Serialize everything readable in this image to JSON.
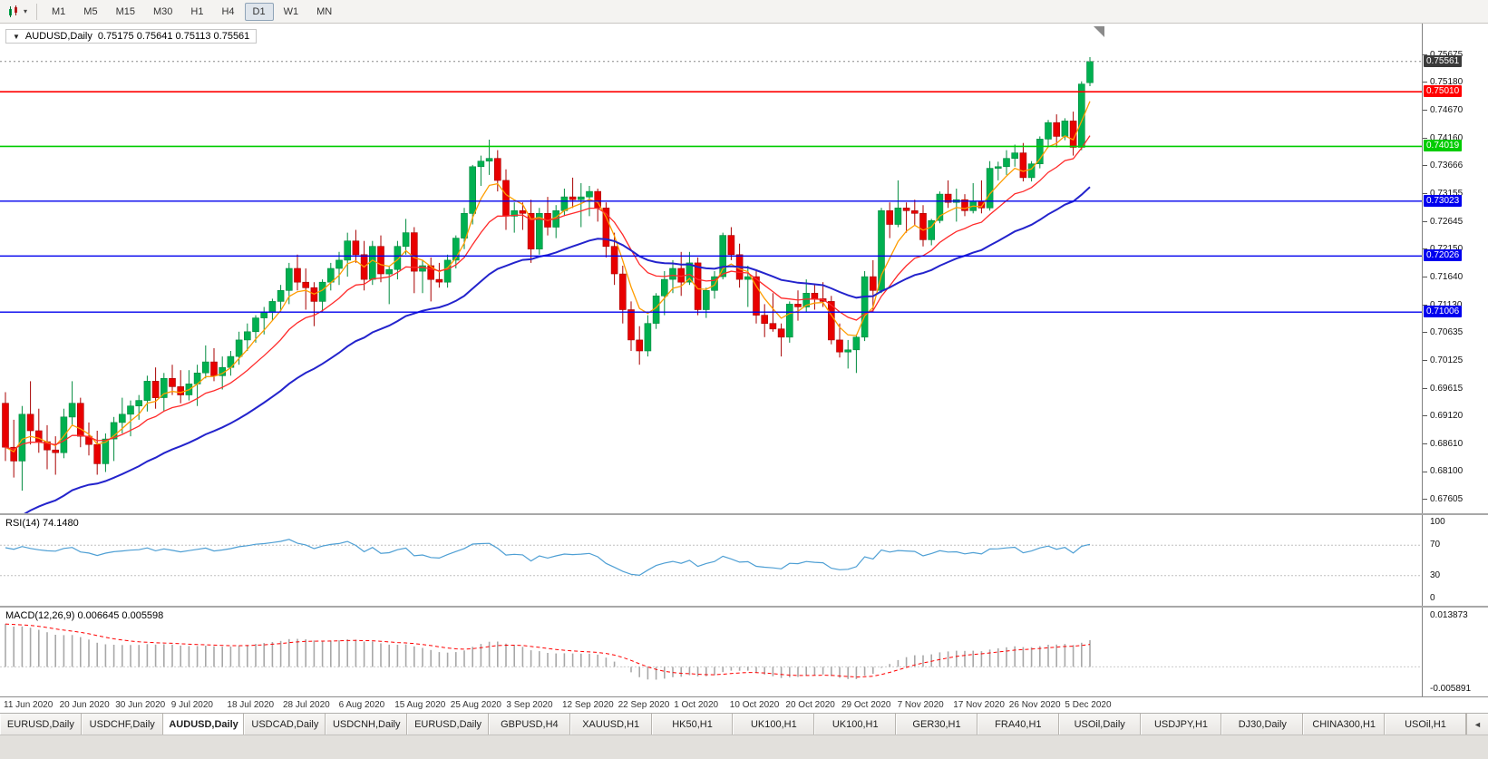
{
  "toolbar": {
    "icon_caret": "▾",
    "timeframes": [
      {
        "label": "M1",
        "active": false
      },
      {
        "label": "M5",
        "active": false
      },
      {
        "label": "M15",
        "active": false
      },
      {
        "label": "M30",
        "active": false
      },
      {
        "label": "H1",
        "active": false
      },
      {
        "label": "H4",
        "active": false
      },
      {
        "label": "D1",
        "active": true
      },
      {
        "label": "W1",
        "active": false
      },
      {
        "label": "MN",
        "active": false
      }
    ]
  },
  "chart": {
    "title": {
      "collapse_icon": "▼",
      "symbol": "AUDUSD,Daily",
      "ohlc": "0.75175 0.75641 0.75113 0.75561"
    }
  },
  "chart_data": {
    "type": "candlestick",
    "symbol": "AUDUSD",
    "period": "Daily",
    "current_ohlc": {
      "open": 0.75175,
      "high": 0.75641,
      "low": 0.75113,
      "close": 0.75561
    },
    "price_range": {
      "min": 0.6735,
      "max": 0.7625
    },
    "price_scale_labels": [
      "0.75675",
      "0.75180",
      "0.74670",
      "0.74160",
      "0.73666",
      "0.73155",
      "0.72645",
      "0.72150",
      "0.71640",
      "0.71130",
      "0.70635",
      "0.70125",
      "0.69615",
      "0.69120",
      "0.68610",
      "0.68100",
      "0.67605"
    ],
    "current_price_label": "0.75561",
    "hlines": [
      {
        "price": 0.7501,
        "label": "0.75010",
        "color": "#ff0000",
        "width": 1.6
      },
      {
        "price": 0.74019,
        "label": "0.74019",
        "color": "#00cc00",
        "width": 1.6
      },
      {
        "price": 0.73023,
        "label": "0.73023",
        "color": "#0000ee",
        "width": 1.4
      },
      {
        "price": 0.72026,
        "label": "0.72026",
        "color": "#0000ee",
        "width": 1.4
      },
      {
        "price": 0.71006,
        "label": "0.71006",
        "color": "#0000ee",
        "width": 1.4
      }
    ],
    "x_axis_labels": [
      "11 Jun 2020",
      "20 Jun 2020",
      "30 Jun 2020",
      "9 Jul 2020",
      "18 Jul 2020",
      "28 Jul 2020",
      "6 Aug 2020",
      "15 Aug 2020",
      "25 Aug 2020",
      "3 Sep 2020",
      "12 Sep 2020",
      "22 Sep 2020",
      "1 Oct 2020",
      "10 Oct 2020",
      "20 Oct 2020",
      "29 Oct 2020",
      "7 Nov 2020",
      "17 Nov 2020",
      "26 Nov 2020",
      "5 Dec 2020"
    ],
    "candles_ohlc": [
      [
        0.6935,
        0.6955,
        0.683,
        0.6855
      ],
      [
        0.6855,
        0.6905,
        0.68,
        0.683
      ],
      [
        0.683,
        0.693,
        0.6776,
        0.6915
      ],
      [
        0.6915,
        0.6975,
        0.686,
        0.6885
      ],
      [
        0.6885,
        0.6925,
        0.6845,
        0.6865
      ],
      [
        0.6865,
        0.6895,
        0.6815,
        0.685
      ],
      [
        0.685,
        0.6875,
        0.6805,
        0.6845
      ],
      [
        0.6845,
        0.6925,
        0.6835,
        0.691
      ],
      [
        0.691,
        0.6975,
        0.6895,
        0.6935
      ],
      [
        0.6935,
        0.6945,
        0.6855,
        0.6875
      ],
      [
        0.6875,
        0.69,
        0.684,
        0.686
      ],
      [
        0.686,
        0.6885,
        0.6805,
        0.6825
      ],
      [
        0.6825,
        0.688,
        0.681,
        0.687
      ],
      [
        0.687,
        0.691,
        0.683,
        0.69
      ],
      [
        0.69,
        0.6945,
        0.688,
        0.6915
      ],
      [
        0.6915,
        0.694,
        0.6875,
        0.693
      ],
      [
        0.693,
        0.695,
        0.6905,
        0.694
      ],
      [
        0.694,
        0.6985,
        0.692,
        0.6975
      ],
      [
        0.6975,
        0.7,
        0.6925,
        0.6945
      ],
      [
        0.6945,
        0.699,
        0.692,
        0.698
      ],
      [
        0.698,
        0.7005,
        0.695,
        0.6965
      ],
      [
        0.6965,
        0.6995,
        0.6935,
        0.695
      ],
      [
        0.695,
        0.6995,
        0.694,
        0.697
      ],
      [
        0.697,
        0.7005,
        0.693,
        0.699
      ],
      [
        0.699,
        0.704,
        0.698,
        0.701
      ],
      [
        0.701,
        0.7035,
        0.6975,
        0.6985
      ],
      [
        0.6985,
        0.702,
        0.696,
        0.7
      ],
      [
        0.7,
        0.703,
        0.6985,
        0.702
      ],
      [
        0.702,
        0.7065,
        0.7005,
        0.705
      ],
      [
        0.705,
        0.708,
        0.703,
        0.7065
      ],
      [
        0.7065,
        0.7095,
        0.7045,
        0.709
      ],
      [
        0.709,
        0.711,
        0.706,
        0.71
      ],
      [
        0.71,
        0.7125,
        0.7085,
        0.712
      ],
      [
        0.712,
        0.715,
        0.71,
        0.714
      ],
      [
        0.714,
        0.719,
        0.7115,
        0.718
      ],
      [
        0.718,
        0.7205,
        0.714,
        0.7155
      ],
      [
        0.7155,
        0.718,
        0.7105,
        0.7145
      ],
      [
        0.7145,
        0.7155,
        0.7075,
        0.712
      ],
      [
        0.712,
        0.716,
        0.71,
        0.7155
      ],
      [
        0.7155,
        0.719,
        0.714,
        0.718
      ],
      [
        0.718,
        0.721,
        0.715,
        0.7195
      ],
      [
        0.7195,
        0.7245,
        0.7165,
        0.723
      ],
      [
        0.723,
        0.725,
        0.719,
        0.7205
      ],
      [
        0.7205,
        0.723,
        0.714,
        0.716
      ],
      [
        0.716,
        0.723,
        0.715,
        0.722
      ],
      [
        0.722,
        0.724,
        0.7155,
        0.717
      ],
      [
        0.717,
        0.7185,
        0.7115,
        0.7178
      ],
      [
        0.7178,
        0.723,
        0.716,
        0.722
      ],
      [
        0.722,
        0.727,
        0.7205,
        0.7245
      ],
      [
        0.7245,
        0.7255,
        0.7135,
        0.7175
      ],
      [
        0.7175,
        0.7195,
        0.7135,
        0.7185
      ],
      [
        0.7185,
        0.72,
        0.712,
        0.716
      ],
      [
        0.716,
        0.719,
        0.7145,
        0.7155
      ],
      [
        0.7155,
        0.7205,
        0.7145,
        0.7195
      ],
      [
        0.7195,
        0.724,
        0.718,
        0.7235
      ],
      [
        0.7235,
        0.729,
        0.7215,
        0.728
      ],
      [
        0.728,
        0.7368,
        0.726,
        0.7365
      ],
      [
        0.7365,
        0.7385,
        0.733,
        0.7375
      ],
      [
        0.7375,
        0.7414,
        0.735,
        0.738
      ],
      [
        0.738,
        0.7395,
        0.732,
        0.734
      ],
      [
        0.734,
        0.736,
        0.725,
        0.7275
      ],
      [
        0.7275,
        0.73,
        0.7245,
        0.7285
      ],
      [
        0.7285,
        0.73,
        0.725,
        0.728
      ],
      [
        0.728,
        0.7305,
        0.719,
        0.7215
      ],
      [
        0.7215,
        0.729,
        0.7205,
        0.728
      ],
      [
        0.728,
        0.731,
        0.724,
        0.7255
      ],
      [
        0.7255,
        0.7295,
        0.7235,
        0.7285
      ],
      [
        0.7285,
        0.7325,
        0.7275,
        0.731
      ],
      [
        0.731,
        0.7345,
        0.729,
        0.7305
      ],
      [
        0.7305,
        0.7335,
        0.7255,
        0.731
      ],
      [
        0.731,
        0.733,
        0.7275,
        0.732
      ],
      [
        0.732,
        0.7325,
        0.7265,
        0.729
      ],
      [
        0.729,
        0.73,
        0.72,
        0.722
      ],
      [
        0.722,
        0.7245,
        0.715,
        0.717
      ],
      [
        0.717,
        0.7185,
        0.708,
        0.7105
      ],
      [
        0.7105,
        0.712,
        0.703,
        0.705
      ],
      [
        0.705,
        0.7075,
        0.7005,
        0.703
      ],
      [
        0.703,
        0.7095,
        0.702,
        0.708
      ],
      [
        0.708,
        0.7135,
        0.707,
        0.713
      ],
      [
        0.713,
        0.7175,
        0.7095,
        0.716
      ],
      [
        0.716,
        0.7195,
        0.7135,
        0.718
      ],
      [
        0.718,
        0.721,
        0.713,
        0.7155
      ],
      [
        0.7155,
        0.721,
        0.715,
        0.719
      ],
      [
        0.719,
        0.72,
        0.7095,
        0.7105
      ],
      [
        0.7105,
        0.7145,
        0.709,
        0.714
      ],
      [
        0.714,
        0.7175,
        0.7125,
        0.7165
      ],
      [
        0.7165,
        0.7245,
        0.716,
        0.724
      ],
      [
        0.724,
        0.7255,
        0.7195,
        0.7205
      ],
      [
        0.7205,
        0.7225,
        0.7145,
        0.716
      ],
      [
        0.716,
        0.7185,
        0.711,
        0.7165
      ],
      [
        0.7165,
        0.7175,
        0.708,
        0.7095
      ],
      [
        0.7095,
        0.7115,
        0.7055,
        0.708
      ],
      [
        0.708,
        0.7135,
        0.7065,
        0.707
      ],
      [
        0.707,
        0.708,
        0.702,
        0.7055
      ],
      [
        0.7055,
        0.712,
        0.7045,
        0.7115
      ],
      [
        0.7115,
        0.714,
        0.7085,
        0.711
      ],
      [
        0.711,
        0.716,
        0.71,
        0.7135
      ],
      [
        0.7135,
        0.715,
        0.7105,
        0.7125
      ],
      [
        0.7125,
        0.7155,
        0.711,
        0.712
      ],
      [
        0.712,
        0.713,
        0.7042,
        0.705
      ],
      [
        0.705,
        0.708,
        0.7018,
        0.7028
      ],
      [
        0.7028,
        0.705,
        0.6998,
        0.7032
      ],
      [
        0.7032,
        0.706,
        0.699,
        0.7055
      ],
      [
        0.7055,
        0.7175,
        0.7048,
        0.7165
      ],
      [
        0.7165,
        0.7195,
        0.71,
        0.714
      ],
      [
        0.714,
        0.729,
        0.7135,
        0.7285
      ],
      [
        0.7285,
        0.73,
        0.7235,
        0.726
      ],
      [
        0.726,
        0.734,
        0.7255,
        0.729
      ],
      [
        0.729,
        0.73,
        0.7245,
        0.7285
      ],
      [
        0.7285,
        0.7305,
        0.7258,
        0.728
      ],
      [
        0.728,
        0.7295,
        0.722,
        0.7232
      ],
      [
        0.7232,
        0.727,
        0.7222,
        0.7267
      ],
      [
        0.7267,
        0.732,
        0.7262,
        0.7315
      ],
      [
        0.7315,
        0.734,
        0.729,
        0.73
      ],
      [
        0.73,
        0.7325,
        0.7265,
        0.7305
      ],
      [
        0.7305,
        0.7315,
        0.7275,
        0.7285
      ],
      [
        0.7285,
        0.7335,
        0.728,
        0.7302
      ],
      [
        0.7302,
        0.734,
        0.728,
        0.729
      ],
      [
        0.729,
        0.7375,
        0.7285,
        0.7362
      ],
      [
        0.7362,
        0.7374,
        0.734,
        0.7365
      ],
      [
        0.7365,
        0.7395,
        0.735,
        0.738
      ],
      [
        0.738,
        0.7405,
        0.7365,
        0.739
      ],
      [
        0.739,
        0.7408,
        0.7338,
        0.7345
      ],
      [
        0.7345,
        0.7375,
        0.7338,
        0.737
      ],
      [
        0.737,
        0.742,
        0.7362,
        0.7415
      ],
      [
        0.7415,
        0.745,
        0.74,
        0.7445
      ],
      [
        0.7445,
        0.746,
        0.74,
        0.742
      ],
      [
        0.742,
        0.7453,
        0.7413,
        0.7448
      ],
      [
        0.7448,
        0.7465,
        0.7385,
        0.74
      ],
      [
        0.74,
        0.752,
        0.7395,
        0.7515
      ],
      [
        0.75175,
        0.75641,
        0.75113,
        0.75561
      ]
    ],
    "moving_averages": [
      {
        "name": "ma-fast",
        "period": 5,
        "color": "#ff9d00",
        "width": 1.3,
        "seed": null
      },
      {
        "name": "ma-mid",
        "period": 13,
        "color": "#ff2a2a",
        "width": 1.3,
        "seed": null
      },
      {
        "name": "ma-slow",
        "period": 34,
        "color": "#2323cc",
        "width": 2,
        "seed": 0.6705
      }
    ],
    "colors": {
      "bull": "#00b050",
      "bull_edge": "#008a3e",
      "bear": "#e80000",
      "bear_edge": "#a80000",
      "background": "#ffffff"
    },
    "indicators": {
      "rsi": {
        "label": "RSI(14) 74.1480",
        "period": 14,
        "value": 74.148,
        "levels": [
          70,
          30
        ],
        "scale_labels": [
          "100",
          "70",
          "30",
          "0"
        ],
        "line_color": "#4e9fd4",
        "seed_gain": 0.004,
        "seed_loss": 0.002
      },
      "macd": {
        "label": "MACD(12,26,9) 0.006645 0.005598",
        "fast": 12,
        "slow": 26,
        "signal": 9,
        "values": [
          0.006645,
          0.005598
        ],
        "scale_labels": [
          "0.013873",
          "-0.005891"
        ],
        "plot_max": 0.0145,
        "plot_min": -0.0065,
        "hist_color": "#a8a8a8",
        "signal_color": "#ff0000",
        "seed_fast": 0.68,
        "seed_slow": 0.668
      }
    }
  },
  "tabs": {
    "scroll_left": "◄",
    "items": [
      {
        "label": "EURUSD,Daily",
        "active": false
      },
      {
        "label": "USDCHF,Daily",
        "active": false
      },
      {
        "label": "AUDUSD,Daily",
        "active": true
      },
      {
        "label": "USDCAD,Daily",
        "active": false
      },
      {
        "label": "USDCNH,Daily",
        "active": false
      },
      {
        "label": "EURUSD,Daily",
        "active": false
      },
      {
        "label": "GBPUSD,H4",
        "active": false
      },
      {
        "label": "XAUUSD,H1",
        "active": false
      },
      {
        "label": "HK50,H1",
        "active": false
      },
      {
        "label": "UK100,H1",
        "active": false
      },
      {
        "label": "UK100,H1",
        "active": false
      },
      {
        "label": "GER30,H1",
        "active": false
      },
      {
        "label": "FRA40,H1",
        "active": false
      },
      {
        "label": "USOil,Daily",
        "active": false
      },
      {
        "label": "USDJPY,H1",
        "active": false
      },
      {
        "label": "DJ30,Daily",
        "active": false
      },
      {
        "label": "CHINA300,H1",
        "active": false
      },
      {
        "label": "USOil,H1",
        "active": false
      }
    ]
  }
}
